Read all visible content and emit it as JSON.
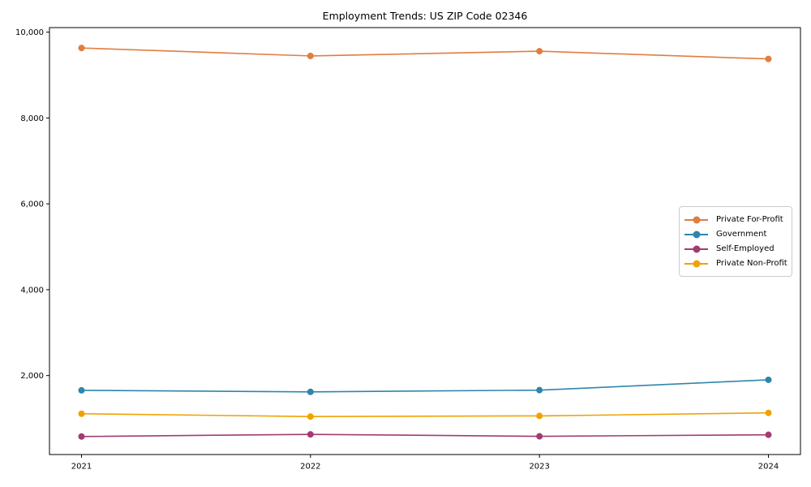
{
  "chart_data": {
    "type": "line",
    "title": "Employment Trends: US ZIP Code 02346",
    "categories": [
      "2021",
      "2022",
      "2023",
      "2024"
    ],
    "series": [
      {
        "name": "Private For-Profit",
        "color": "#E37C3F",
        "values": [
          9630,
          9445,
          9555,
          9375
        ]
      },
      {
        "name": "Government",
        "color": "#2E86AB",
        "values": [
          1655,
          1620,
          1660,
          1900
        ]
      },
      {
        "name": "Self-Employed",
        "color": "#A23B72",
        "values": [
          580,
          630,
          585,
          620
        ]
      },
      {
        "name": "Private Non-Profit",
        "color": "#F0A202",
        "values": [
          1110,
          1045,
          1060,
          1130
        ]
      }
    ],
    "xlabel": "",
    "ylabel": "",
    "ylim": [
      160,
      10105
    ],
    "yticks": [
      {
        "value": 2000,
        "label": "2,000"
      },
      {
        "value": 4000,
        "label": "4,000"
      },
      {
        "value": 6000,
        "label": "6,000"
      },
      {
        "value": 8000,
        "label": "8,000"
      },
      {
        "value": 10000,
        "label": "10,000"
      }
    ],
    "grid": false,
    "legend_position": "center-right",
    "axis_color": "#000000",
    "tick_label_color": "#000000",
    "background": "#ffffff"
  }
}
